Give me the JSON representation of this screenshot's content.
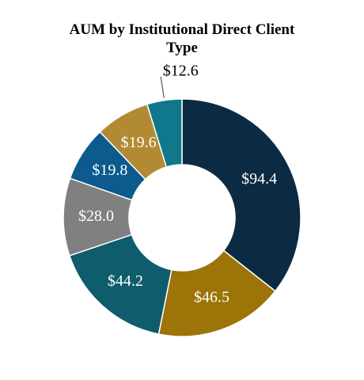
{
  "chart_data": {
    "type": "donut",
    "title": "AUM by Institutional Direct Client Type",
    "values": [
      94.4,
      46.5,
      44.2,
      28.0,
      19.8,
      19.6,
      12.6
    ],
    "value_labels": [
      "$94.4",
      "$46.5",
      "$44.2",
      "$28.0",
      "$19.8",
      "$19.6",
      "$12.6"
    ],
    "colors": [
      "#0c2a42",
      "#9c7408",
      "#0e5c6c",
      "#808080",
      "#0c5a8e",
      "#b38a34",
      "#10788c"
    ]
  }
}
